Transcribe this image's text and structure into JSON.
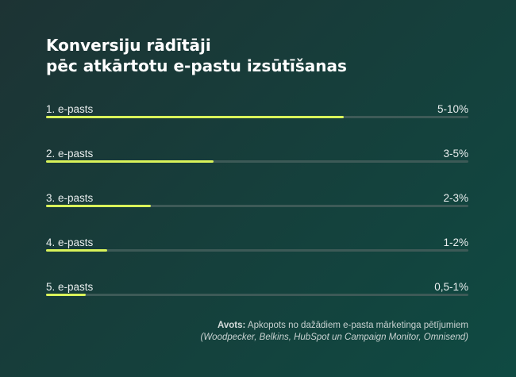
{
  "chart_data": {
    "type": "bar",
    "title_lines": [
      "Konversiju rādītāji",
      "pēc atkārtotu e-pastu izsūtīšanas"
    ],
    "categories": [
      "1. e-pasts",
      "2. e-pasts",
      "3. e-pasts",
      "4. e-pasts",
      "5. e-pasts"
    ],
    "value_labels": [
      "5-10%",
      "3-5%",
      "2-3%",
      "1-2%",
      "0,5-1%"
    ],
    "values": [
      0.705,
      0.397,
      0.248,
      0.145,
      0.094
    ],
    "xlim": [
      0,
      1
    ],
    "grid": false,
    "legend": "none",
    "colors": {
      "bar": "#d9f35a",
      "track": "#3d5a57"
    }
  },
  "source": {
    "label": "Avots:",
    "text": "Apkopots no dažādiem e-pasta mārketinga pētījumiem",
    "refs": "(Woodpecker, Belkins, HubSpot un Campaign Monitor, Omnisend)"
  }
}
